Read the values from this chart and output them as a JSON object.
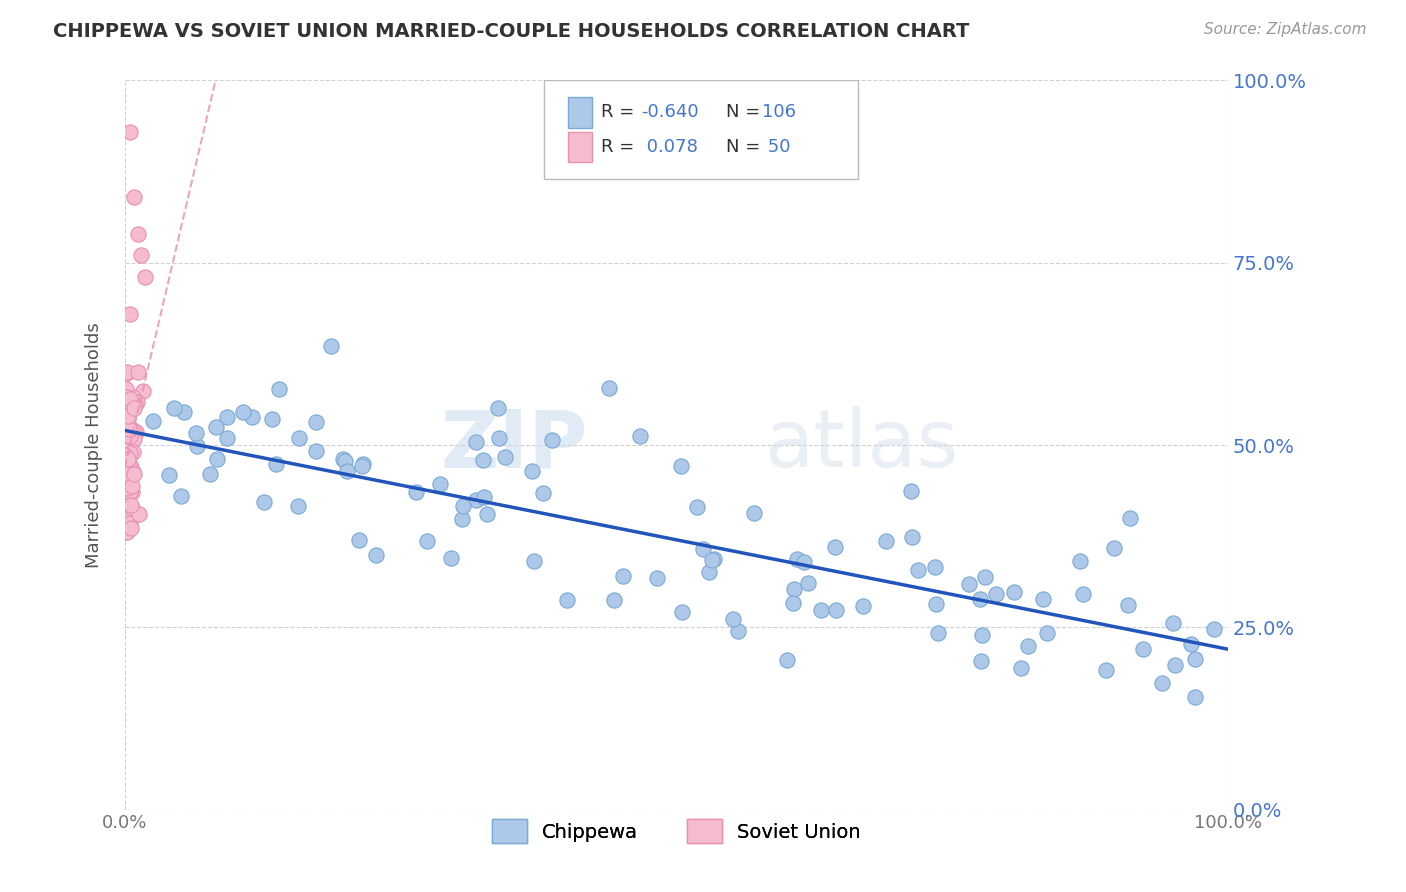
{
  "title": "CHIPPEWA VS SOVIET UNION MARRIED-COUPLE HOUSEHOLDS CORRELATION CHART",
  "source": "Source: ZipAtlas.com",
  "ylabel": "Married-couple Households",
  "xlim": [
    0.0,
    1.0
  ],
  "ylim": [
    0.0,
    1.0
  ],
  "ytick_positions": [
    0.0,
    0.25,
    0.5,
    0.75,
    1.0
  ],
  "ytick_labels": [
    "0.0%",
    "25.0%",
    "50.0%",
    "75.0%",
    "100.0%"
  ],
  "chippewa_color": "#adc8e8",
  "soviet_color": "#f5bcd0",
  "chippewa_edge": "#7aaad4",
  "soviet_edge": "#e890b0",
  "trend_chippewa_color": "#2255bb",
  "trend_soviet_color": "#e890b0",
  "R_chippewa": -0.64,
  "N_chippewa": 106,
  "R_soviet": 0.078,
  "N_soviet": 50,
  "background_color": "#ffffff",
  "grid_color": "#cccccc",
  "watermark_zip": "ZIP",
  "watermark_atlas": "atlas",
  "legend_label_chippewa": "Chippewa",
  "legend_label_soviet": "Soviet Union",
  "right_tick_color": "#4477cc",
  "title_color": "#333333",
  "source_color": "#999999"
}
